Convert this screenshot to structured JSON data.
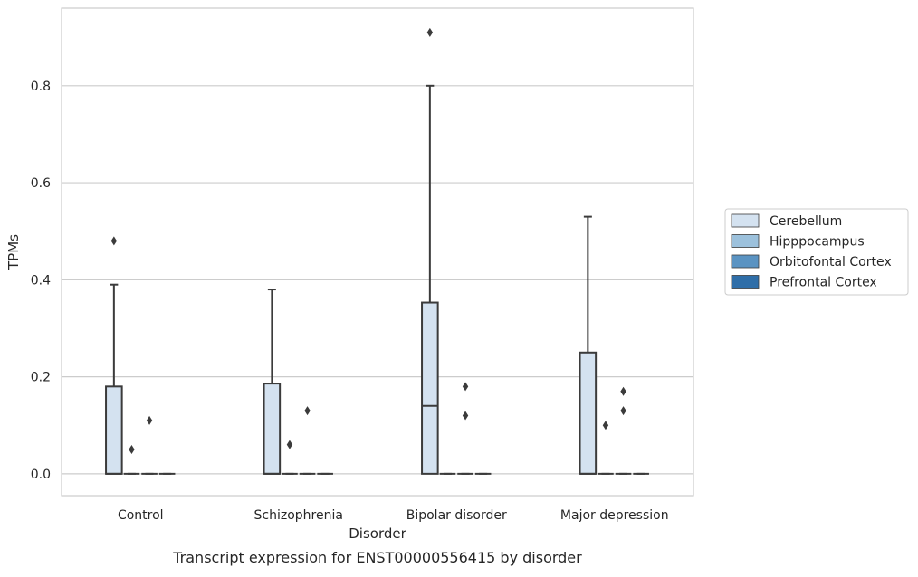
{
  "caption": "Transcript expression for ENST00000556415 by disorder",
  "chart_data": {
    "type": "box",
    "title": "",
    "xlabel": "Disorder",
    "ylabel": "TPMs",
    "ylim": [
      -0.045,
      0.96
    ],
    "yticks": [
      0.0,
      0.2,
      0.4,
      0.6,
      0.8
    ],
    "ytick_labels": [
      "0.0",
      "0.2",
      "0.4",
      "0.6",
      "0.8"
    ],
    "grid": "horizontal",
    "legend_position": "right",
    "categories": [
      "Control",
      "Schizophrenia",
      "Bipolar disorder",
      "Major depression"
    ],
    "series": [
      {
        "name": "Cerebellum",
        "color": "#d4e2f0",
        "boxes": [
          {
            "q1": 0.0,
            "median": 0.0,
            "q3": 0.18,
            "whisker_low": 0.0,
            "whisker_high": 0.39,
            "outliers": [
              0.48
            ]
          },
          {
            "q1": 0.0,
            "median": 0.0,
            "q3": 0.186,
            "whisker_low": 0.0,
            "whisker_high": 0.38,
            "outliers": []
          },
          {
            "q1": 0.0,
            "median": 0.14,
            "q3": 0.353,
            "whisker_low": 0.0,
            "whisker_high": 0.8,
            "outliers": [
              0.91
            ]
          },
          {
            "q1": 0.0,
            "median": 0.0,
            "q3": 0.25,
            "whisker_low": 0.0,
            "whisker_high": 0.53,
            "outliers": []
          }
        ]
      },
      {
        "name": "Hipppocampus",
        "color": "#9cc1dc",
        "boxes": [
          {
            "q1": 0.0,
            "median": 0.0,
            "q3": 0.0,
            "whisker_low": 0.0,
            "whisker_high": 0.0,
            "outliers": [
              0.05
            ]
          },
          {
            "q1": 0.0,
            "median": 0.0,
            "q3": 0.0,
            "whisker_low": 0.0,
            "whisker_high": 0.0,
            "outliers": [
              0.06
            ]
          },
          {
            "q1": 0.0,
            "median": 0.0,
            "q3": 0.0,
            "whisker_low": 0.0,
            "whisker_high": 0.0,
            "outliers": []
          },
          {
            "q1": 0.0,
            "median": 0.0,
            "q3": 0.0,
            "whisker_low": 0.0,
            "whisker_high": 0.0,
            "outliers": [
              0.1
            ]
          }
        ]
      },
      {
        "name": "Orbitofontal Cortex",
        "color": "#5a93c2",
        "boxes": [
          {
            "q1": 0.0,
            "median": 0.0,
            "q3": 0.0,
            "whisker_low": 0.0,
            "whisker_high": 0.0,
            "outliers": [
              0.11
            ]
          },
          {
            "q1": 0.0,
            "median": 0.0,
            "q3": 0.0,
            "whisker_low": 0.0,
            "whisker_high": 0.0,
            "outliers": [
              0.13
            ]
          },
          {
            "q1": 0.0,
            "median": 0.0,
            "q3": 0.0,
            "whisker_low": 0.0,
            "whisker_high": 0.0,
            "outliers": [
              0.12,
              0.18
            ]
          },
          {
            "q1": 0.0,
            "median": 0.0,
            "q3": 0.0,
            "whisker_low": 0.0,
            "whisker_high": 0.0,
            "outliers": [
              0.17,
              0.13
            ]
          }
        ]
      },
      {
        "name": "Prefrontal Cortex",
        "color": "#2f6ea8",
        "boxes": [
          {
            "q1": 0.0,
            "median": 0.0,
            "q3": 0.0,
            "whisker_low": 0.0,
            "whisker_high": 0.0,
            "outliers": []
          },
          {
            "q1": 0.0,
            "median": 0.0,
            "q3": 0.0,
            "whisker_low": 0.0,
            "whisker_high": 0.0,
            "outliers": []
          },
          {
            "q1": 0.0,
            "median": 0.0,
            "q3": 0.0,
            "whisker_low": 0.0,
            "whisker_high": 0.0,
            "outliers": []
          },
          {
            "q1": 0.0,
            "median": 0.0,
            "q3": 0.0,
            "whisker_low": 0.0,
            "whisker_high": 0.0,
            "outliers": []
          }
        ]
      }
    ]
  }
}
